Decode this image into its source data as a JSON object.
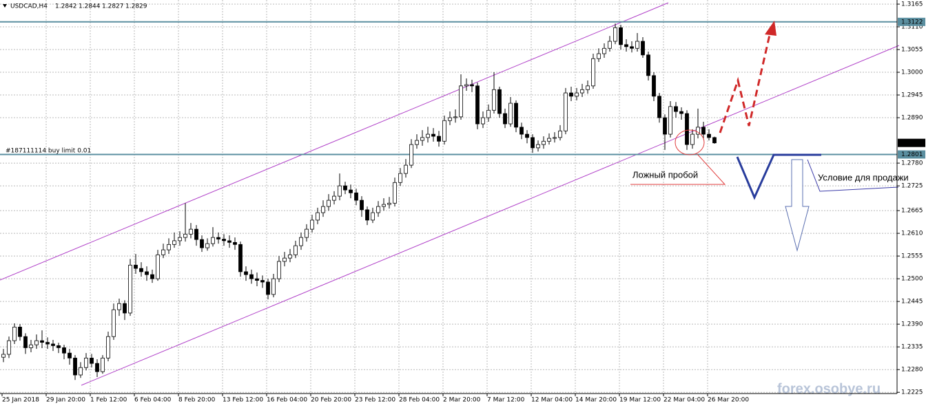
{
  "chart_data": {
    "type": "candlestick",
    "symbol": "USDCAD,H4",
    "categories": [
      "25 Jan 2018",
      null,
      null,
      null,
      null,
      null,
      null,
      null,
      "29 Jan 20:00",
      null,
      null,
      null,
      null,
      null,
      null,
      null,
      "1 Feb 12:00",
      null,
      null,
      null,
      null,
      null,
      null,
      null,
      "6 Feb 04:00",
      null,
      null,
      null,
      null,
      null,
      null,
      null,
      "8 Feb 20:00",
      null,
      null,
      null,
      null,
      null,
      null,
      null,
      "13 Feb 12:00",
      null,
      null,
      null,
      null,
      null,
      null,
      null,
      "16 Feb 04:00",
      null,
      null,
      null,
      null,
      null,
      null,
      null,
      "20 Feb 20:00",
      null,
      null,
      null,
      null,
      null,
      null,
      null,
      "23 Feb 12:00",
      null,
      null,
      null,
      null,
      null,
      null,
      null,
      "28 Feb 04:00",
      null,
      null,
      null,
      null,
      null,
      null,
      null,
      "2 Mar 20:00",
      null,
      null,
      null,
      null,
      null,
      null,
      null,
      "7 Mar 12:00",
      null,
      null,
      null,
      null,
      null,
      null,
      null,
      "12 Mar 04:00",
      null,
      null,
      null,
      null,
      null,
      null,
      null,
      "14 Mar 20:00",
      null,
      null,
      null,
      null,
      null,
      null,
      null,
      "19 Mar 12:00",
      null,
      null,
      null,
      null,
      null,
      null,
      null,
      "22 Mar 04:00",
      null,
      null,
      null,
      null,
      null,
      null,
      null,
      "26 Mar 20:00",
      null
    ],
    "open": [
      1.231,
      1.2317,
      1.235,
      1.2383,
      1.236,
      1.2333,
      1.234,
      1.235,
      1.2346,
      1.2342,
      1.2338,
      1.2333,
      1.232,
      1.2308,
      1.2267,
      1.2285,
      1.2308,
      1.2295,
      1.2275,
      1.2308,
      1.236,
      1.2425,
      1.244,
      1.2417,
      1.2533,
      1.2525,
      1.2517,
      1.251,
      1.25,
      1.2558,
      1.257,
      1.2583,
      1.2592,
      1.26,
      1.2608,
      1.262,
      1.2595,
      1.2575,
      1.2585,
      1.26,
      1.2596,
      1.2592,
      1.2588,
      1.2583,
      1.2517,
      1.251,
      1.25,
      1.2496,
      1.2492,
      1.2462,
      1.25,
      1.2542,
      1.255,
      1.2558,
      1.258,
      1.26,
      1.262,
      1.2642,
      1.266,
      1.2675,
      1.269,
      1.27,
      1.2725,
      1.2715,
      1.2708,
      1.269,
      1.2667,
      1.2642,
      1.266,
      1.2675,
      1.268,
      1.2683,
      1.2733,
      1.2755,
      1.2775,
      1.2825,
      1.2835,
      1.2842,
      1.285,
      1.2845,
      1.2833,
      1.2883,
      1.289,
      1.2892,
      1.2967,
      1.297,
      1.2967,
      1.2875,
      1.289,
      1.2908,
      1.2958,
      1.29,
      1.2875,
      1.2925,
      1.2867,
      1.285,
      1.2842,
      1.2817,
      1.2825,
      1.2833,
      1.284,
      1.2842,
      1.2858,
      1.295,
      1.2942,
      1.295,
      1.2958,
      1.2967,
      1.3033,
      1.3045,
      1.3058,
      1.3075,
      1.3108,
      1.3067,
      1.3062,
      1.3058,
      1.3075,
      1.3042,
      1.2992,
      1.2942,
      1.289,
      1.285,
      1.2917,
      1.2905,
      1.29,
      1.2825,
      1.285,
      1.2867,
      1.285,
      1.2842
    ],
    "high": [
      1.233,
      1.236,
      1.2392,
      1.239,
      1.2368,
      1.2352,
      1.2365,
      1.2375,
      1.2358,
      1.2352,
      1.2345,
      1.234,
      1.233,
      1.2315,
      1.2298,
      1.232,
      1.2318,
      1.2305,
      1.2315,
      1.2372,
      1.244,
      1.2452,
      1.2448,
      1.2548,
      1.256,
      1.254,
      1.253,
      1.2522,
      1.257,
      1.2585,
      1.2598,
      1.2612,
      1.2615,
      1.2683,
      1.2635,
      1.263,
      1.2605,
      1.2598,
      1.2625,
      1.2612,
      1.2608,
      1.2605,
      1.26,
      1.259,
      1.253,
      1.2522,
      1.2515,
      1.2508,
      1.25,
      1.2512,
      1.2555,
      1.2565,
      1.2572,
      1.2592,
      1.2612,
      1.2632,
      1.2655,
      1.2672,
      1.269,
      1.2705,
      1.2712,
      1.2755,
      1.2735,
      1.2728,
      1.2718,
      1.27,
      1.2675,
      1.2672,
      1.2688,
      1.2695,
      1.2698,
      1.2745,
      1.2768,
      1.279,
      1.2838,
      1.285,
      1.286,
      1.2868,
      1.2865,
      1.2858,
      1.2895,
      1.2905,
      1.291,
      1.2995,
      1.2985,
      1.2982,
      1.2975,
      1.2905,
      1.2922,
      1.3,
      1.2965,
      1.2912,
      1.294,
      1.2932,
      1.2878,
      1.286,
      1.285,
      1.2835,
      1.2845,
      1.2852,
      1.2855,
      1.2872,
      1.2962,
      1.2965,
      1.2962,
      1.2972,
      1.298,
      1.3045,
      1.3058,
      1.307,
      1.3088,
      1.3118,
      1.3115,
      1.308,
      1.3075,
      1.3095,
      1.3085,
      1.305,
      1.3,
      1.295,
      1.2898,
      1.293,
      1.2928,
      1.2915,
      1.2908,
      1.2862,
      1.2912,
      1.288,
      1.2862,
      1.2844
    ],
    "low": [
      1.2298,
      1.2308,
      1.2342,
      1.235,
      1.2318,
      1.2322,
      1.233,
      1.2332,
      1.233,
      1.2325,
      1.232,
      1.2305,
      1.2292,
      1.2255,
      1.226,
      1.2278,
      1.2285,
      1.2262,
      1.227,
      1.23,
      1.2352,
      1.241,
      1.24,
      1.241,
      1.2512,
      1.2505,
      1.2495,
      1.249,
      1.2495,
      1.255,
      1.256,
      1.2575,
      1.258,
      1.259,
      1.2598,
      1.258,
      1.2565,
      1.2568,
      1.2578,
      1.2585,
      1.258,
      1.2575,
      1.257,
      1.2505,
      1.2495,
      1.2488,
      1.2482,
      1.2478,
      1.245,
      1.2455,
      1.2492,
      1.253,
      1.254,
      1.255,
      1.257,
      1.259,
      1.2612,
      1.2632,
      1.265,
      1.2665,
      1.268,
      1.269,
      1.2705,
      1.2695,
      1.2678,
      1.265,
      1.263,
      1.2635,
      1.265,
      1.2665,
      1.267,
      1.2675,
      1.2725,
      1.2745,
      1.2768,
      1.2815,
      1.2822,
      1.283,
      1.2832,
      1.282,
      1.2825,
      1.2872,
      1.2878,
      1.2885,
      1.2955,
      1.2952,
      1.2862,
      1.2865,
      1.288,
      1.29,
      1.289,
      1.2865,
      1.2868,
      1.2855,
      1.2838,
      1.2828,
      1.2805,
      1.2808,
      1.2815,
      1.2825,
      1.283,
      1.2835,
      1.285,
      1.293,
      1.2932,
      1.294,
      1.2948,
      1.296,
      1.3025,
      1.3035,
      1.305,
      1.3068,
      1.3055,
      1.305,
      1.3048,
      1.305,
      1.3035,
      1.298,
      1.293,
      1.2878,
      1.2812,
      1.2842,
      1.289,
      1.2885,
      1.2812,
      1.2815,
      1.284,
      1.2838,
      1.2835,
      1.2827
    ],
    "close": [
      1.2317,
      1.235,
      1.2383,
      1.236,
      1.2333,
      1.234,
      1.235,
      1.2346,
      1.2342,
      1.2338,
      1.2333,
      1.232,
      1.2308,
      1.2267,
      1.2285,
      1.2308,
      1.2295,
      1.2275,
      1.2308,
      1.236,
      1.2425,
      1.244,
      1.2417,
      1.2533,
      1.2525,
      1.2517,
      1.251,
      1.25,
      1.2558,
      1.257,
      1.2583,
      1.2592,
      1.26,
      1.2608,
      1.262,
      1.2595,
      1.2575,
      1.2585,
      1.26,
      1.2596,
      1.2592,
      1.2588,
      1.2583,
      1.2517,
      1.251,
      1.25,
      1.2496,
      1.2492,
      1.2462,
      1.25,
      1.2542,
      1.255,
      1.2558,
      1.258,
      1.26,
      1.262,
      1.2642,
      1.266,
      1.2675,
      1.269,
      1.27,
      1.2725,
      1.2715,
      1.2708,
      1.269,
      1.2667,
      1.2642,
      1.266,
      1.2675,
      1.268,
      1.2683,
      1.2733,
      1.2755,
      1.2775,
      1.2825,
      1.2835,
      1.2842,
      1.285,
      1.2845,
      1.2833,
      1.2883,
      1.289,
      1.2892,
      1.2967,
      1.297,
      1.2967,
      1.2875,
      1.289,
      1.2908,
      1.2958,
      1.29,
      1.2875,
      1.2925,
      1.2867,
      1.285,
      1.2842,
      1.2817,
      1.2825,
      1.2833,
      1.284,
      1.2842,
      1.2858,
      1.295,
      1.2942,
      1.295,
      1.2958,
      1.2967,
      1.3033,
      1.3045,
      1.3058,
      1.3075,
      1.3108,
      1.3067,
      1.3062,
      1.3058,
      1.3075,
      1.3042,
      1.2992,
      1.2942,
      1.289,
      1.285,
      1.2917,
      1.2905,
      1.29,
      1.2825,
      1.285,
      1.2867,
      1.285,
      1.2842,
      1.2829
    ],
    "bull_color": "#ffffff",
    "bear_color": "#000000",
    "ylim": [
      1.2222,
      1.3175
    ],
    "yticks": [
      1.3165,
      {
        "value": 1.311,
        "label": "1.3110"
      },
      1.3055,
      {
        "value": 1.3,
        "label": "1.3000"
      },
      1.2945,
      {
        "value": 1.289,
        "label": "1.2890"
      },
      {
        "value": 1.278,
        "label": "1.2780"
      },
      1.2725,
      1.2665,
      {
        "value": 1.261,
        "label": "1.2610"
      },
      1.2555,
      {
        "value": 1.25,
        "label": "1.2500"
      },
      1.2445,
      {
        "value": 1.239,
        "label": "1.2390"
      },
      1.2335,
      {
        "value": 1.228,
        "label": "1.2280"
      },
      1.2225
    ],
    "grid": true,
    "levels": [
      {
        "value": 1.3122,
        "color": "#5b8fa0"
      },
      {
        "value": 1.2801,
        "color": "#5b8fa0"
      }
    ],
    "order_label": "#187111114 buy limit 0.01",
    "annotations": [
      {
        "text": "Ложный пробой",
        "color": "#e03a3a"
      },
      {
        "text": "Условие для продажи",
        "color": "#3a3aa8"
      }
    ],
    "watermark": "forex.osobye.ru"
  }
}
